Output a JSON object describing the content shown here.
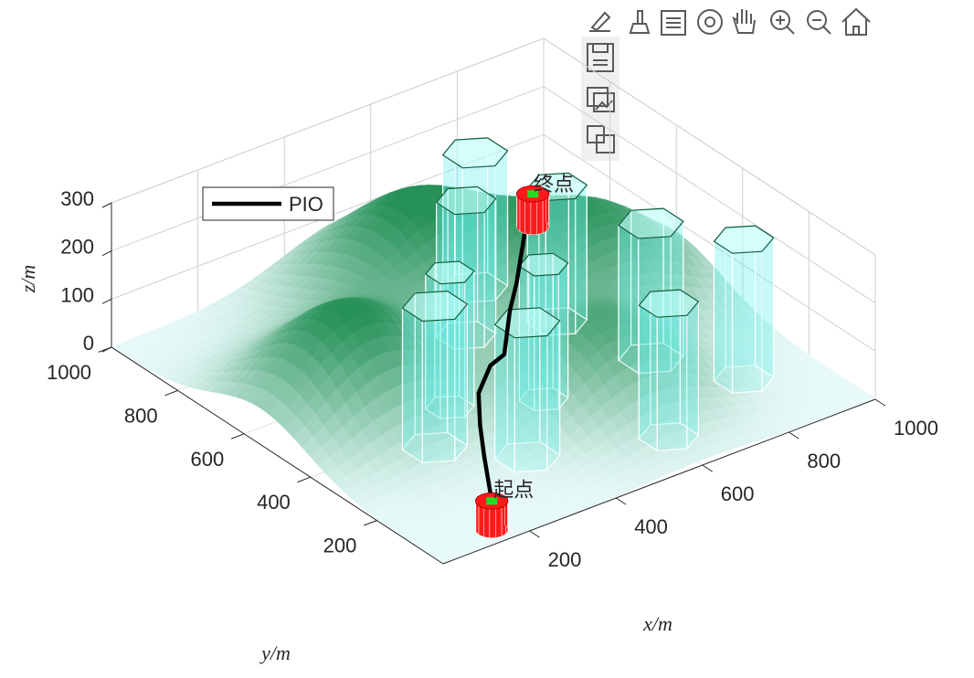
{
  "chart_data": {
    "type": "surface3d",
    "xlabel": "x/m",
    "ylabel": "y/m",
    "zlabel": "z/m",
    "xlim": [
      0,
      1000
    ],
    "ylim": [
      0,
      1000
    ],
    "zlim": [
      0,
      300
    ],
    "xticks": [
      200,
      400,
      600,
      800,
      1000
    ],
    "yticks": [
      200,
      400,
      600,
      800,
      1000
    ],
    "zticks": [
      0,
      100,
      200,
      300
    ],
    "grid": true,
    "legend": "northwest",
    "terrain": [
      {
        "x": 550,
        "y": 800,
        "height": 210,
        "spread": 150
      },
      {
        "x": 820,
        "y": 600,
        "height": 175,
        "spread": 140
      },
      {
        "x": 200,
        "y": 550,
        "height": 210,
        "spread": 140
      },
      {
        "x": 600,
        "y": 300,
        "height": 160,
        "spread": 130
      }
    ],
    "obstacles": [
      {
        "x": 665,
        "y": 770,
        "radius": 60,
        "height": 280
      },
      {
        "x": 545,
        "y": 641,
        "radius": 55,
        "height": 280
      },
      {
        "x": 709,
        "y": 580,
        "radius": 55,
        "height": 280
      },
      {
        "x": 360,
        "y": 449,
        "radius": 45,
        "height": 280
      },
      {
        "x": 515,
        "y": 368,
        "radius": 45,
        "height": 280
      },
      {
        "x": 248,
        "y": 348,
        "radius": 60,
        "height": 294
      },
      {
        "x": 362,
        "y": 218,
        "radius": 60,
        "height": 279
      },
      {
        "x": 764,
        "y": 369,
        "radius": 60,
        "height": 280
      },
      {
        "x": 853,
        "y": 205,
        "radius": 55,
        "height": 290
      },
      {
        "x": 614,
        "y": 120,
        "radius": 55,
        "height": 277
      }
    ],
    "series": [
      {
        "name": "PIO",
        "color": "#000000",
        "x": [
          147,
          234,
          298,
          366,
          444,
          489,
          594,
          664,
          799,
          886
        ],
        "y": [
          45,
          181,
          277,
          370,
          436,
          453,
          573,
          644,
          793,
          884
        ],
        "z": [
          60,
          61,
          62,
          63,
          64,
          64,
          65,
          66,
          67,
          68
        ]
      }
    ],
    "start": {
      "label": "起点",
      "x": 147,
      "y": 45,
      "z": 60
    },
    "goal": {
      "label": "终点",
      "x": 886,
      "y": 884,
      "z": 68
    }
  }
}
